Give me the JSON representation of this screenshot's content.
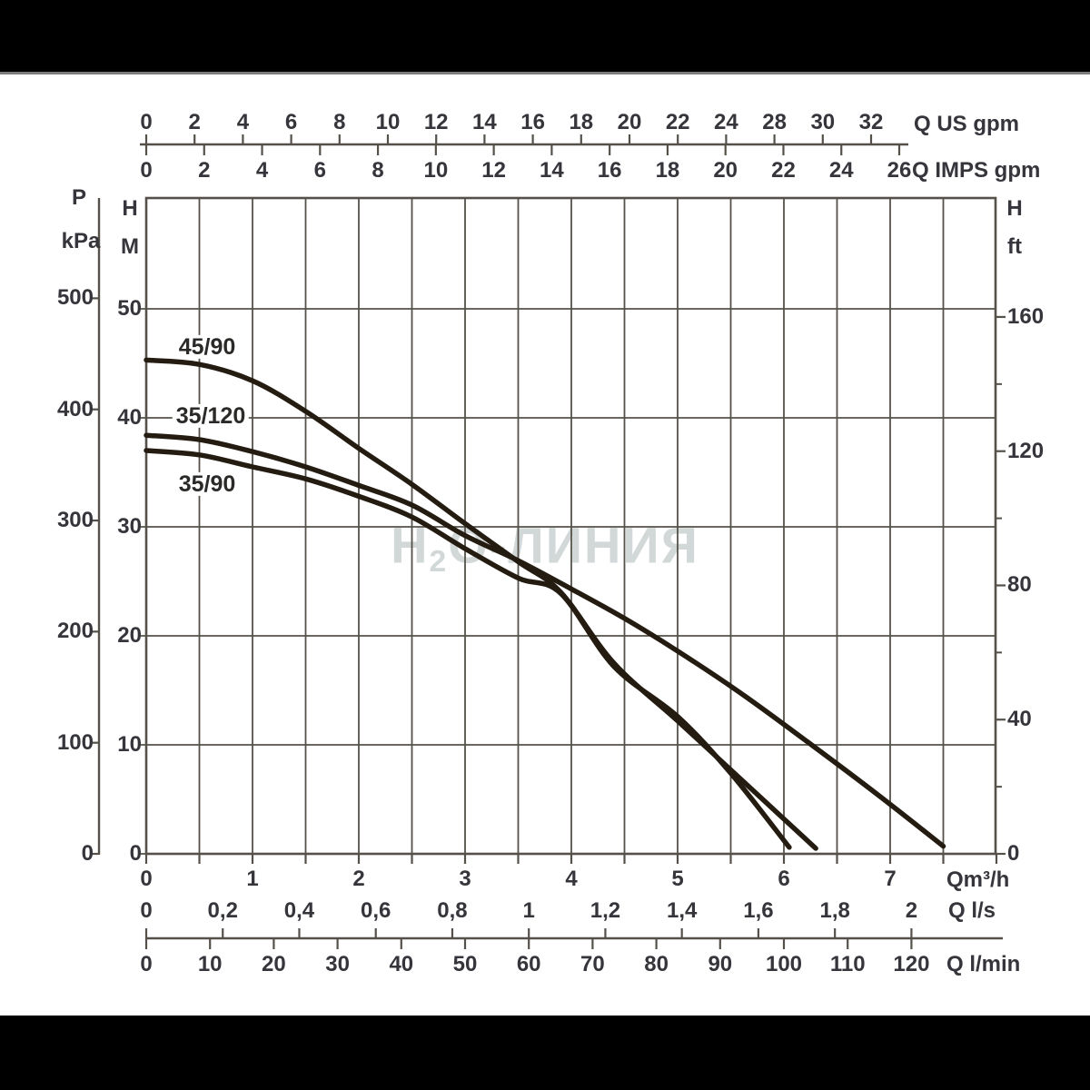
{
  "page": {
    "background_color": "#000000",
    "panel_color": "#ffffff",
    "top_rule_color": "#7d7d7d"
  },
  "watermark": {
    "prefix": "H",
    "subscript": "2",
    "suffix": "O-ЛИНИЯ",
    "color": "#d2d8d8"
  },
  "chart_data": {
    "type": "line",
    "title": "",
    "grid": true,
    "grid_color": "#55514a",
    "curve_color": "#241b11",
    "text_color": "#35353b",
    "x_range_m3h": [
      0,
      8
    ],
    "y_range_m": [
      0,
      60
    ],
    "series": [
      {
        "name": "45/90",
        "points_q_m3h_h_m": [
          [
            0,
            45.3
          ],
          [
            0.5,
            44.9
          ],
          [
            1,
            43.4
          ],
          [
            1.5,
            40.6
          ],
          [
            2,
            37.2
          ],
          [
            2.5,
            33.9
          ],
          [
            3,
            30.3
          ],
          [
            3.5,
            26.8
          ],
          [
            3.9,
            24.0
          ],
          [
            4.4,
            17.5
          ],
          [
            5,
            12.2
          ],
          [
            5.6,
            6.8
          ],
          [
            6.3,
            0.5
          ]
        ]
      },
      {
        "name": "35/120",
        "points_q_m3h_h_m": [
          [
            0,
            38.4
          ],
          [
            0.5,
            38.0
          ],
          [
            1,
            36.9
          ],
          [
            1.5,
            35.5
          ],
          [
            2,
            33.8
          ],
          [
            2.5,
            32.0
          ],
          [
            3,
            29.2
          ],
          [
            3.5,
            26.9
          ],
          [
            4,
            24.3
          ],
          [
            4.5,
            21.6
          ],
          [
            5,
            18.6
          ],
          [
            5.6,
            14.7
          ],
          [
            6.26,
            10.0
          ],
          [
            6.9,
            5.3
          ],
          [
            7.5,
            0.7
          ]
        ]
      },
      {
        "name": "35/90",
        "points_q_m3h_h_m": [
          [
            0,
            37.0
          ],
          [
            0.5,
            36.6
          ],
          [
            1,
            35.5
          ],
          [
            1.5,
            34.4
          ],
          [
            2,
            32.8
          ],
          [
            2.5,
            30.9
          ],
          [
            3,
            28.0
          ],
          [
            3.5,
            25.3
          ],
          [
            3.9,
            23.9
          ],
          [
            4.4,
            17.2
          ],
          [
            5,
            12.6
          ],
          [
            5.5,
            7.4
          ],
          [
            6.05,
            0.6
          ]
        ]
      }
    ],
    "axes": {
      "x_top_us": {
        "unit": "Q US gpm",
        "ticks": [
          "0",
          "2",
          "4",
          "6",
          "8",
          "10",
          "12",
          "14",
          "16",
          "18",
          "20",
          "22",
          "24",
          "28",
          "30",
          "32"
        ]
      },
      "x_top_imps": {
        "unit": "Q IMPS gpm",
        "ticks": [
          "0",
          "2",
          "4",
          "6",
          "8",
          "10",
          "12",
          "14",
          "16",
          "18",
          "20",
          "22",
          "24",
          "26"
        ]
      },
      "y_left_kpa": {
        "sym": "P",
        "unit": "kPa",
        "ticks": [
          "500",
          "400",
          "300",
          "200",
          "100",
          "0"
        ]
      },
      "y_left_m": {
        "sym": "H",
        "unit": "M",
        "ticks": [
          "50",
          "40",
          "30",
          "20",
          "10",
          "0"
        ]
      },
      "y_right_ft": {
        "sym": "H",
        "unit": "ft",
        "major_ticks": [
          "160",
          "120",
          "80",
          "40",
          "0"
        ],
        "minor_ticks": [
          140,
          100,
          60,
          20
        ]
      },
      "x_bottom_m3h": {
        "unit": "Qm³/h",
        "ticks": [
          "0",
          "1",
          "2",
          "3",
          "4",
          "5",
          "6",
          "7"
        ]
      },
      "x_bottom_ls": {
        "unit": "Q l/s",
        "ticks": [
          "0",
          "0,2",
          "0,4",
          "0,6",
          "0,8",
          "1",
          "1,2",
          "1,4",
          "1,6",
          "1,8",
          "2"
        ]
      },
      "x_bottom_lmin": {
        "unit": "Q l/min",
        "ticks": [
          "0",
          "10",
          "20",
          "30",
          "40",
          "50",
          "60",
          "70",
          "80",
          "90",
          "100",
          "110",
          "120"
        ]
      }
    }
  }
}
